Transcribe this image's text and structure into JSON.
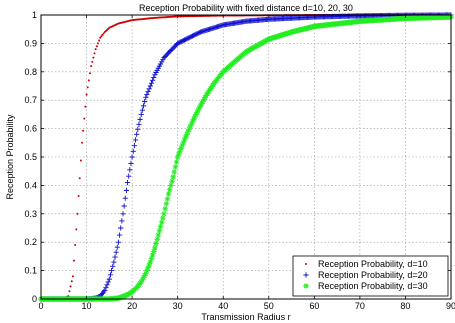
{
  "chart_data": {
    "type": "scatter",
    "title": "Reception Probability with fixed distance d=10, 20, 30",
    "xlabel": "Transmission Radius r",
    "ylabel": "Reception Probability",
    "xlim": [
      0,
      90
    ],
    "ylim": [
      0,
      1
    ],
    "xticks": [
      0,
      10,
      20,
      30,
      40,
      50,
      60,
      70,
      80,
      90
    ],
    "xtick_labels": [
      "0",
      "10",
      "20",
      "30",
      "40",
      "50",
      "60",
      "70",
      "80",
      "90"
    ],
    "yticks": [
      0,
      0.1,
      0.2,
      0.3,
      0.4,
      0.5,
      0.6,
      0.7,
      0.8,
      0.9,
      1
    ],
    "ytick_labels": [
      "0",
      "0.1",
      "0.2",
      "0.3",
      "0.4",
      "0.5",
      "0.6",
      "0.7",
      "0.8",
      "0.9",
      "1"
    ],
    "grid": true,
    "legend_position": "bottom-right",
    "series": [
      {
        "name": "Reception Probability, d=10",
        "color": "#d00000",
        "marker": "dot",
        "x": [
          0,
          5,
          6,
          7,
          8,
          9,
          10,
          11,
          12,
          13,
          14,
          15,
          17,
          20,
          25,
          30,
          40,
          50,
          60,
          70,
          80,
          90
        ],
        "y": [
          0,
          0,
          0.01,
          0.08,
          0.3,
          0.55,
          0.72,
          0.82,
          0.88,
          0.92,
          0.94,
          0.955,
          0.97,
          0.982,
          0.99,
          0.995,
          0.998,
          0.999,
          1,
          1,
          1,
          1
        ]
      },
      {
        "name": "Reception Probability, d=20",
        "color": "#1010d0",
        "marker": "plus",
        "x": [
          0,
          10,
          12,
          13,
          14,
          15,
          16,
          17,
          18,
          19,
          20,
          21,
          22,
          23,
          24,
          25,
          27,
          30,
          35,
          40,
          45,
          50,
          60,
          70,
          80,
          90
        ],
        "y": [
          0,
          0,
          0.003,
          0.01,
          0.03,
          0.07,
          0.13,
          0.2,
          0.3,
          0.41,
          0.5,
          0.58,
          0.65,
          0.71,
          0.75,
          0.79,
          0.85,
          0.9,
          0.94,
          0.965,
          0.978,
          0.985,
          0.993,
          0.997,
          0.999,
          1
        ]
      },
      {
        "name": "Reception Probability, d=30",
        "color": "#22ee22",
        "marker": "star",
        "x": [
          0,
          15,
          17,
          19,
          20,
          21,
          22,
          23,
          24,
          25,
          26,
          27,
          28,
          29,
          30,
          32,
          34,
          36,
          38,
          40,
          45,
          50,
          55,
          60,
          70,
          80,
          90
        ],
        "y": [
          0,
          0,
          0.003,
          0.015,
          0.025,
          0.04,
          0.06,
          0.09,
          0.13,
          0.18,
          0.24,
          0.3,
          0.37,
          0.43,
          0.5,
          0.58,
          0.65,
          0.71,
          0.76,
          0.8,
          0.87,
          0.915,
          0.94,
          0.96,
          0.978,
          0.988,
          0.993
        ]
      }
    ]
  }
}
